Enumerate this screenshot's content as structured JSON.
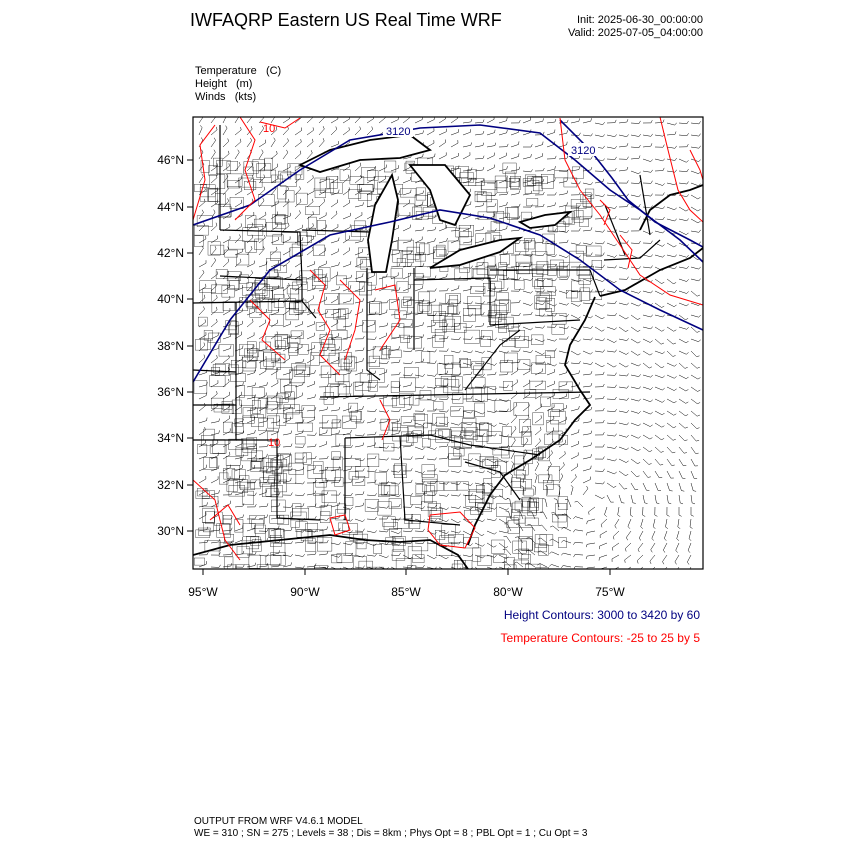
{
  "header": {
    "title": "IWFAQRP Eastern US Real Time WRF",
    "init": "Init: 2025-06-30_00:00:00",
    "valid": "Valid: 2025-07-05_04:00:00"
  },
  "fields": [
    {
      "name": "Temperature",
      "unit": "(C)"
    },
    {
      "name": "Height",
      "unit": "(m)"
    },
    {
      "name": "Winds",
      "unit": "(kts)"
    }
  ],
  "map": {
    "lat_labels": [
      "46°N",
      "44°N",
      "42°N",
      "40°N",
      "38°N",
      "36°N",
      "34°N",
      "32°N",
      "30°N"
    ],
    "lon_labels": [
      "95°W",
      "90°W",
      "85°W",
      "80°W",
      "75°W"
    ],
    "height_contour_labels": [
      "3120",
      "3120"
    ],
    "temperature_contour_labels": [
      "10",
      "10"
    ],
    "colors": {
      "height": "#000080",
      "temperature": "#ff0000",
      "boundaries": "#000000",
      "wind_barbs": "#000000"
    }
  },
  "legend": {
    "height": "Height Contours: 3000 to 3420 by 60",
    "temperature": "Temperature Contours: -25 to 25 by 5"
  },
  "footer": {
    "line1": "OUTPUT FROM WRF V4.6.1 MODEL",
    "line2": "WE = 310 ; SN = 275 ; Levels = 38 ; Dis = 8km ; Phys Opt = 8 ; PBL Opt = 1 ; Cu Opt = 3"
  }
}
